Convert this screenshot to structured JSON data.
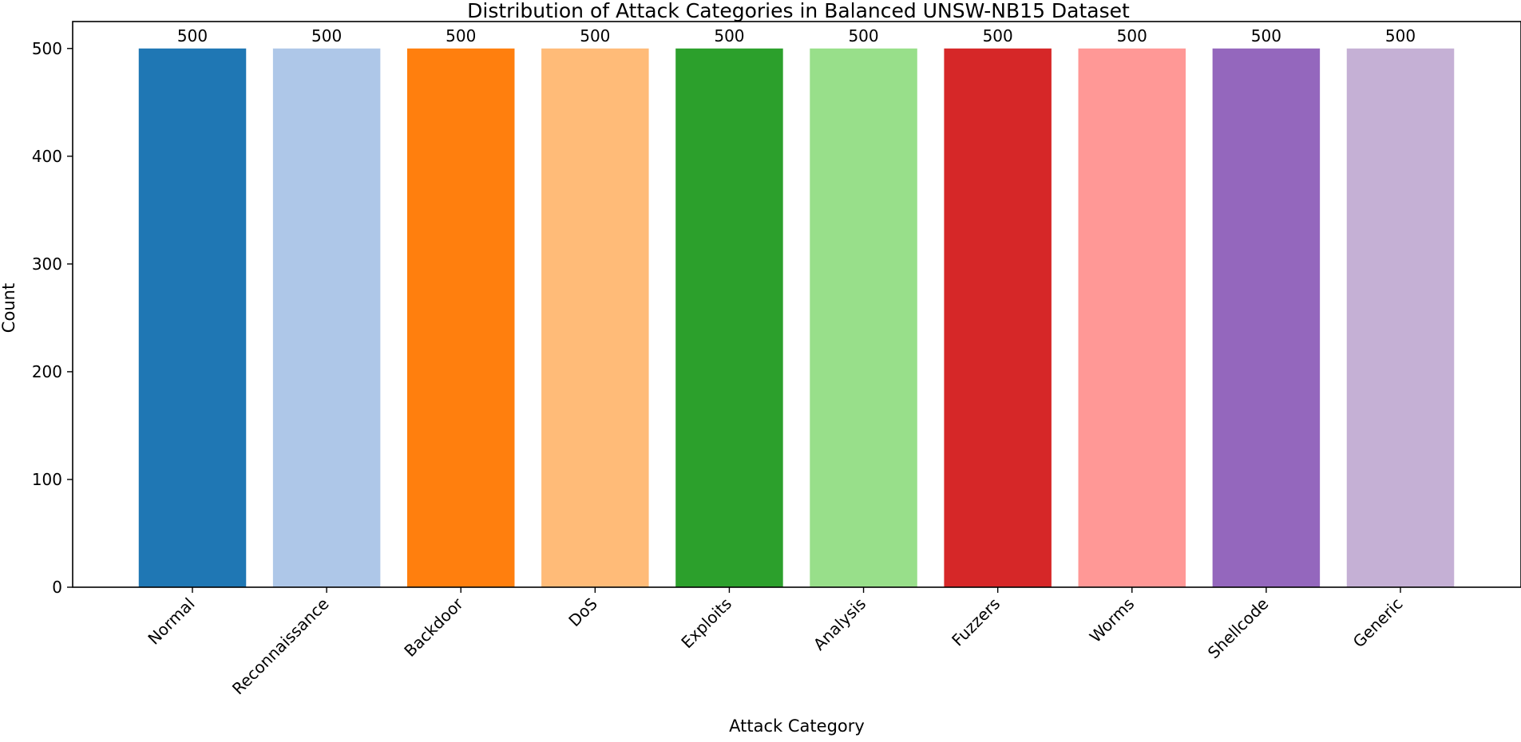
{
  "chart_data": {
    "type": "bar",
    "title": "Distribution of Attack Categories in Balanced UNSW-NB15 Dataset",
    "xlabel": "Attack Category",
    "ylabel": "Count",
    "categories": [
      "Normal",
      "Reconnaissance",
      "Backdoor",
      "DoS",
      "Exploits",
      "Analysis",
      "Fuzzers",
      "Worms",
      "Shellcode",
      "Generic"
    ],
    "values": [
      500,
      500,
      500,
      500,
      500,
      500,
      500,
      500,
      500,
      500
    ],
    "data_labels": [
      "500",
      "500",
      "500",
      "500",
      "500",
      "500",
      "500",
      "500",
      "500",
      "500"
    ],
    "colors": [
      "#1f77b4",
      "#aec7e8",
      "#ff7f0e",
      "#ffbb78",
      "#2ca02c",
      "#98df8a",
      "#d62728",
      "#ff9896",
      "#9467bd",
      "#c5b0d5"
    ],
    "ylim": [
      0,
      525
    ],
    "yticks": [
      0,
      100,
      200,
      300,
      400,
      500
    ],
    "grid": false,
    "legend": "none"
  }
}
